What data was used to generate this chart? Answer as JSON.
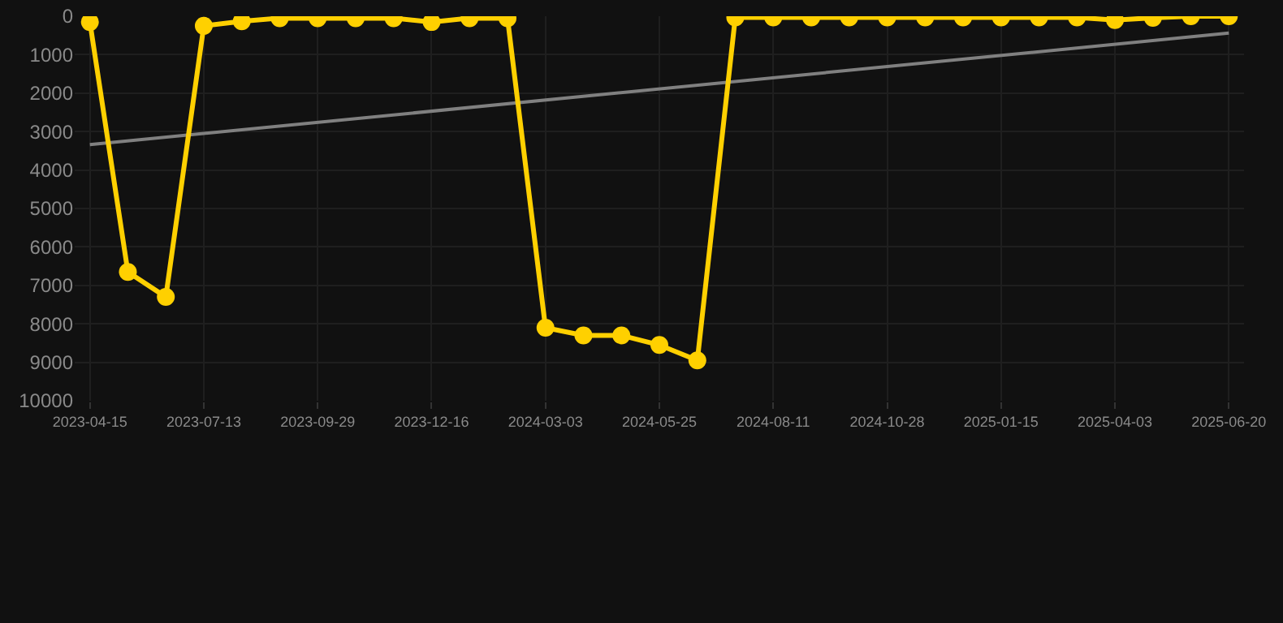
{
  "chart_data": {
    "type": "line",
    "categories": [
      "2023-04-15",
      null,
      null,
      "2023-07-13",
      null,
      null,
      "2023-09-29",
      null,
      null,
      "2023-12-16",
      null,
      null,
      "2024-03-03",
      null,
      null,
      "2024-05-25",
      null,
      null,
      "2024-08-11",
      null,
      null,
      "2024-10-28",
      null,
      null,
      "2025-01-15",
      null,
      null,
      "2025-04-03",
      null,
      null,
      "2025-06-20"
    ],
    "series": [
      {
        "color": "#ffd000",
        "marker": "circle",
        "values": [
          150,
          6650,
          7300,
          250,
          130,
          50,
          50,
          50,
          50,
          150,
          50,
          50,
          8100,
          8300,
          8300,
          8550,
          8950,
          30,
          30,
          30,
          30,
          30,
          30,
          30,
          30,
          30,
          30,
          100,
          40,
          0,
          0
        ]
      },
      {
        "type": "line",
        "color": "#808080",
        "marker": "none",
        "values": [
          3340,
          null,
          null,
          null,
          null,
          null,
          null,
          null,
          null,
          null,
          null,
          null,
          null,
          null,
          null,
          null,
          null,
          null,
          null,
          null,
          null,
          null,
          null,
          null,
          null,
          null,
          null,
          null,
          null,
          null,
          440
        ]
      }
    ],
    "ylim": [
      10000,
      0
    ],
    "yticks": [
      0,
      1000,
      2000,
      3000,
      4000,
      5000,
      6000,
      7000,
      8000,
      9000,
      10000
    ],
    "grid": true
  }
}
